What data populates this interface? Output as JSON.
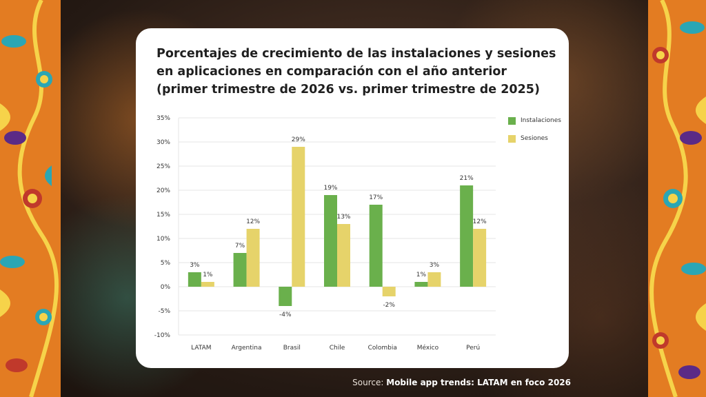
{
  "source": {
    "prefix": "Source:",
    "name": "Mobile app trends: LATAM en foco 2026"
  },
  "chart_data": {
    "type": "bar",
    "title": "Porcentajes de crecimiento de las instalaciones y sesiones en aplicaciones en comparación con el año anterior (primer trimestre de 2026 vs. primer trimestre de 2025)",
    "categories": [
      "LATAM",
      "Argentina",
      "Brasil",
      "Chile",
      "Colombia",
      "México",
      "Perú"
    ],
    "series": [
      {
        "name": "Instalaciones",
        "color": "#6ab04c",
        "values": [
          3,
          7,
          -4,
          19,
          17,
          1,
          21
        ]
      },
      {
        "name": "Sesiones",
        "color": "#e6d36a",
        "values": [
          1,
          12,
          29,
          13,
          -2,
          3,
          12
        ]
      }
    ],
    "ylim": [
      -10,
      35
    ],
    "yticks": [
      35,
      30,
      25,
      20,
      15,
      10,
      5,
      0,
      -5,
      -10
    ],
    "value_suffix": "%",
    "grid": true,
    "legend_position": "top-right"
  }
}
